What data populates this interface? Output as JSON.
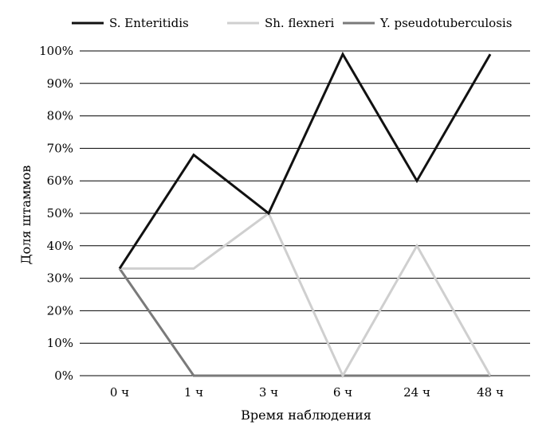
{
  "chart_data": {
    "type": "line",
    "categories": [
      "0 ч",
      "1 ч",
      "3 ч",
      "6 ч",
      "24 ч",
      "48 ч"
    ],
    "series": [
      {
        "name": "S. Enteritidis",
        "values": [
          33,
          68,
          50,
          99,
          60,
          99
        ],
        "color": "#111111"
      },
      {
        "name": "Sh. flexneri",
        "values": [
          33,
          33,
          50,
          0,
          40,
          0
        ],
        "color": "#cfcfcf"
      },
      {
        "name": "Y. pseudotuberculosis",
        "values": [
          33,
          0,
          0,
          0,
          0,
          0
        ],
        "color": "#7a7a7a"
      }
    ],
    "title": "",
    "xlabel": "Время наблюдения",
    "ylabel": "Доля штаммов",
    "ylim": [
      0,
      100
    ],
    "yticks": [
      "0%",
      "10%",
      "20%",
      "30%",
      "40%",
      "50%",
      "60%",
      "70%",
      "80%",
      "90%",
      "100%"
    ],
    "grid": true,
    "legend_position": "top"
  }
}
